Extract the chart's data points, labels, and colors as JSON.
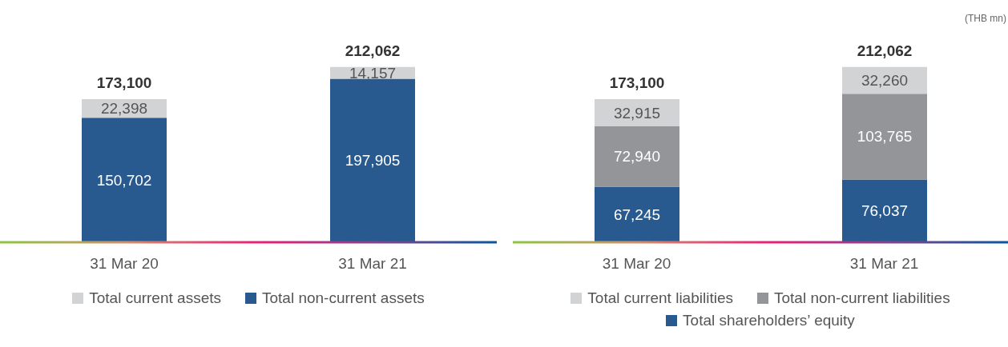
{
  "chart_data": [
    {
      "type": "bar",
      "stacked": true,
      "categories": [
        "31 Mar 20",
        "31 Mar 21"
      ],
      "series": [
        {
          "name": "Total non-current assets",
          "color": "#285a8f",
          "values": [
            150702,
            197905
          ],
          "value_labels": [
            "150,702",
            "197,905"
          ]
        },
        {
          "name": "Total current assets",
          "color": "#d2d3d5",
          "values": [
            22398,
            14157
          ],
          "value_labels": [
            "22,398",
            "14,157"
          ]
        }
      ],
      "totals": [
        "173,100",
        "212,062"
      ],
      "legend": "bottom"
    },
    {
      "type": "bar",
      "stacked": true,
      "categories": [
        "31 Mar 20",
        "31 Mar 21"
      ],
      "series": [
        {
          "name": "Total shareholders’ equity",
          "color": "#285a8f",
          "values": [
            67245,
            76037
          ],
          "value_labels": [
            "67,245",
            "76,037"
          ]
        },
        {
          "name": "Total non-current liabilities",
          "color": "#949599",
          "values": [
            72940,
            103765
          ],
          "value_labels": [
            "72,940",
            "103,765"
          ]
        },
        {
          "name": "Total current liabilities",
          "color": "#d2d3d5",
          "values": [
            32915,
            32260
          ],
          "value_labels": [
            "32,915",
            "32,260"
          ]
        }
      ],
      "totals": [
        "173,100",
        "212,062"
      ],
      "legend": "bottom",
      "annotations": [
        "(THB mn)"
      ]
    }
  ]
}
